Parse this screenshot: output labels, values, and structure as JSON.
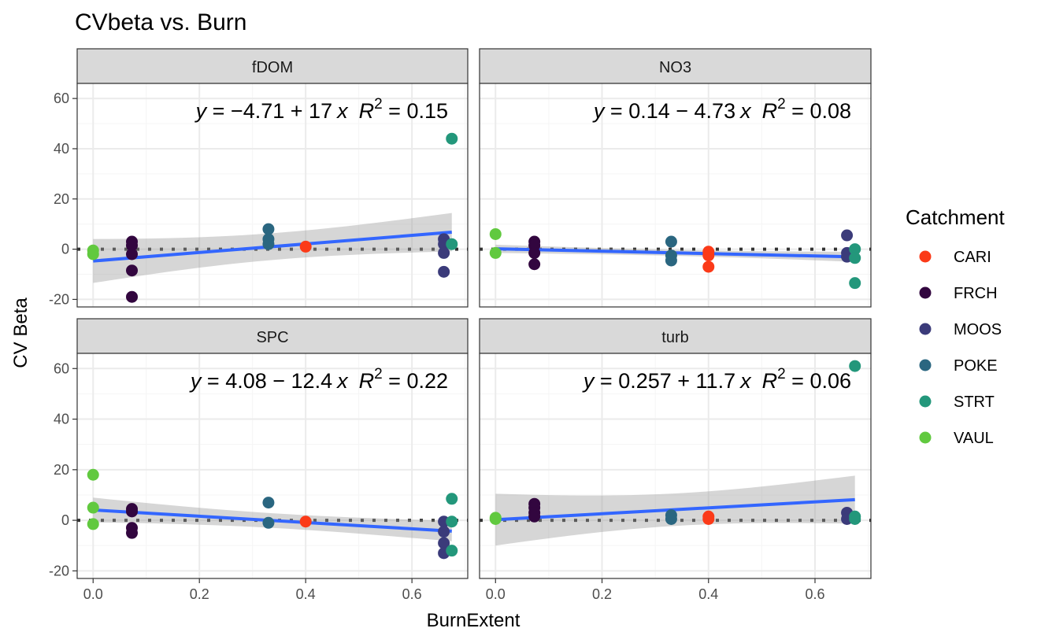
{
  "chart_data": {
    "type": "scatter",
    "title": "CVbeta vs. Burn",
    "xlabel": "BurnExtent",
    "ylabel": "CV Beta",
    "xlim": [
      -0.03,
      0.705
    ],
    "ylim": [
      -23,
      66
    ],
    "x_ticks": [
      0.0,
      0.2,
      0.4,
      0.6
    ],
    "x_tick_labels": [
      "0.0",
      "0.2",
      "0.4",
      "0.6"
    ],
    "y_ticks": [
      -20,
      0,
      20,
      40,
      60
    ],
    "y_tick_labels": [
      "-20",
      "0",
      "20",
      "40",
      "60"
    ],
    "grid": true,
    "reference_line": {
      "y": 0,
      "style": "dotted"
    },
    "legend": {
      "title": "Catchment",
      "position": "right",
      "entries": [
        {
          "name": "CARI",
          "color": "#fb3a18"
        },
        {
          "name": "FRCH",
          "color": "#32063f"
        },
        {
          "name": "MOOS",
          "color": "#3b3b7a"
        },
        {
          "name": "POKE",
          "color": "#2a6680"
        },
        {
          "name": "STRT",
          "color": "#23977b"
        },
        {
          "name": "VAUL",
          "color": "#61c93f"
        }
      ]
    },
    "panels": [
      {
        "name": "fDOM",
        "equation": {
          "y_prefix": "y = ",
          "operator": "−",
          "intercept": "4.71",
          "plus": "+",
          "slope": "17",
          "x": "x",
          "r2": "R",
          "r2_sup": "2",
          "r2_value": " = 0.15"
        },
        "fit": {
          "intercept": -4.71,
          "slope": 17,
          "ci_left": [
            -13.5,
            4.0
          ],
          "ci_right": [
            -0.8,
            14.5
          ]
        },
        "points": [
          {
            "catchment": "VAUL",
            "x": 0.0,
            "y": -2.0
          },
          {
            "catchment": "VAUL",
            "x": 0.0,
            "y": -0.5
          },
          {
            "catchment": "FRCH",
            "x": 0.073,
            "y": 3.0
          },
          {
            "catchment": "FRCH",
            "x": 0.073,
            "y": 1.5
          },
          {
            "catchment": "FRCH",
            "x": 0.073,
            "y": -2.0
          },
          {
            "catchment": "FRCH",
            "x": 0.073,
            "y": -8.5
          },
          {
            "catchment": "FRCH",
            "x": 0.073,
            "y": -19.0
          },
          {
            "catchment": "POKE",
            "x": 0.33,
            "y": 8.0
          },
          {
            "catchment": "POKE",
            "x": 0.33,
            "y": 4.0
          },
          {
            "catchment": "POKE",
            "x": 0.33,
            "y": 2.0
          },
          {
            "catchment": "CARI",
            "x": 0.4,
            "y": 1.0
          },
          {
            "catchment": "MOOS",
            "x": 0.66,
            "y": 4.0
          },
          {
            "catchment": "MOOS",
            "x": 0.66,
            "y": 2.0
          },
          {
            "catchment": "MOOS",
            "x": 0.66,
            "y": -1.5
          },
          {
            "catchment": "MOOS",
            "x": 0.66,
            "y": -9.0
          },
          {
            "catchment": "STRT",
            "x": 0.675,
            "y": 44.0
          },
          {
            "catchment": "STRT",
            "x": 0.675,
            "y": 2.0
          }
        ]
      },
      {
        "name": "NO3",
        "equation": {
          "y_prefix": "y = ",
          "operator": "",
          "intercept": "0.14",
          "plus": "−",
          "slope": "4.73",
          "x": "x",
          "r2": "R",
          "r2_sup": "2",
          "r2_value": " = 0.08"
        },
        "fit": {
          "intercept": 0.14,
          "slope": -4.73,
          "ci_left": [
            -1.5,
            1.8
          ],
          "ci_right": [
            -5.5,
            -1.5
          ]
        },
        "points": [
          {
            "catchment": "VAUL",
            "x": 0.0,
            "y": 6.0
          },
          {
            "catchment": "VAUL",
            "x": 0.0,
            "y": -1.5
          },
          {
            "catchment": "FRCH",
            "x": 0.073,
            "y": 3.0
          },
          {
            "catchment": "FRCH",
            "x": 0.073,
            "y": 1.5
          },
          {
            "catchment": "FRCH",
            "x": 0.073,
            "y": -1.5
          },
          {
            "catchment": "FRCH",
            "x": 0.073,
            "y": -6.0
          },
          {
            "catchment": "POKE",
            "x": 0.33,
            "y": 3.0
          },
          {
            "catchment": "POKE",
            "x": 0.33,
            "y": -2.5
          },
          {
            "catchment": "POKE",
            "x": 0.33,
            "y": -4.5
          },
          {
            "catchment": "CARI",
            "x": 0.4,
            "y": -1.0
          },
          {
            "catchment": "CARI",
            "x": 0.4,
            "y": -2.5
          },
          {
            "catchment": "CARI",
            "x": 0.4,
            "y": -7.0
          },
          {
            "catchment": "MOOS",
            "x": 0.66,
            "y": 5.5
          },
          {
            "catchment": "MOOS",
            "x": 0.66,
            "y": -1.5
          },
          {
            "catchment": "MOOS",
            "x": 0.66,
            "y": -3.0
          },
          {
            "catchment": "STRT",
            "x": 0.675,
            "y": 0.0
          },
          {
            "catchment": "STRT",
            "x": 0.675,
            "y": -3.5
          },
          {
            "catchment": "STRT",
            "x": 0.675,
            "y": -13.5
          }
        ]
      },
      {
        "name": "SPC",
        "equation": {
          "y_prefix": "y = ",
          "operator": "",
          "intercept": "4.08",
          "plus": "−",
          "slope": "12.4",
          "x": "x",
          "r2": "R",
          "r2_sup": "2",
          "r2_value": " = 0.22"
        },
        "fit": {
          "intercept": 4.08,
          "slope": -12.4,
          "ci_left": [
            -0.8,
            9.0
          ],
          "ci_right": [
            -8.5,
            -0.5
          ]
        },
        "points": [
          {
            "catchment": "VAUL",
            "x": 0.0,
            "y": 18.0
          },
          {
            "catchment": "VAUL",
            "x": 0.0,
            "y": 5.0
          },
          {
            "catchment": "VAUL",
            "x": 0.0,
            "y": -1.5
          },
          {
            "catchment": "FRCH",
            "x": 0.073,
            "y": 4.5
          },
          {
            "catchment": "FRCH",
            "x": 0.073,
            "y": 3.5
          },
          {
            "catchment": "FRCH",
            "x": 0.073,
            "y": -3.0
          },
          {
            "catchment": "FRCH",
            "x": 0.073,
            "y": -5.0
          },
          {
            "catchment": "POKE",
            "x": 0.33,
            "y": 7.0
          },
          {
            "catchment": "POKE",
            "x": 0.33,
            "y": -1.0
          },
          {
            "catchment": "CARI",
            "x": 0.4,
            "y": -0.5
          },
          {
            "catchment": "MOOS",
            "x": 0.66,
            "y": -0.5
          },
          {
            "catchment": "MOOS",
            "x": 0.66,
            "y": -4.5
          },
          {
            "catchment": "MOOS",
            "x": 0.66,
            "y": -9.0
          },
          {
            "catchment": "MOOS",
            "x": 0.66,
            "y": -13.0
          },
          {
            "catchment": "STRT",
            "x": 0.675,
            "y": 8.5
          },
          {
            "catchment": "STRT",
            "x": 0.675,
            "y": -0.5
          },
          {
            "catchment": "STRT",
            "x": 0.675,
            "y": -12.0
          }
        ]
      },
      {
        "name": "turb",
        "equation": {
          "y_prefix": "y = ",
          "operator": "",
          "intercept": "0.257",
          "plus": "+",
          "slope": "11.7",
          "x": "x",
          "r2": "R",
          "r2_sup": "2",
          "r2_value": " = 0.06"
        },
        "fit": {
          "intercept": 0.257,
          "slope": 11.7,
          "ci_left": [
            -10.0,
            10.5
          ],
          "ci_right": [
            -1.5,
            17.5
          ]
        },
        "points": [
          {
            "catchment": "VAUL",
            "x": 0.0,
            "y": 1.0
          },
          {
            "catchment": "VAUL",
            "x": 0.0,
            "y": 0.5
          },
          {
            "catchment": "FRCH",
            "x": 0.073,
            "y": 6.5
          },
          {
            "catchment": "FRCH",
            "x": 0.073,
            "y": 5.0
          },
          {
            "catchment": "FRCH",
            "x": 0.073,
            "y": 3.0
          },
          {
            "catchment": "FRCH",
            "x": 0.073,
            "y": 1.5
          },
          {
            "catchment": "POKE",
            "x": 0.33,
            "y": 2.0
          },
          {
            "catchment": "POKE",
            "x": 0.33,
            "y": 0.5
          },
          {
            "catchment": "CARI",
            "x": 0.4,
            "y": 1.5
          },
          {
            "catchment": "CARI",
            "x": 0.4,
            "y": 0.5
          },
          {
            "catchment": "MOOS",
            "x": 0.66,
            "y": 3.0
          },
          {
            "catchment": "MOOS",
            "x": 0.66,
            "y": 0.5
          },
          {
            "catchment": "STRT",
            "x": 0.675,
            "y": 61.0
          },
          {
            "catchment": "STRT",
            "x": 0.675,
            "y": 1.5
          },
          {
            "catchment": "STRT",
            "x": 0.675,
            "y": 0.5
          }
        ]
      }
    ]
  },
  "colors": {
    "fit_line": "#3366ff",
    "ci_band": "#999999",
    "strip_fill": "#d9d9d9",
    "panel_border": "#333333",
    "grid_major": "#ebebeb",
    "grid_minor": "#f5f5f5",
    "reference_line": "#333333"
  }
}
